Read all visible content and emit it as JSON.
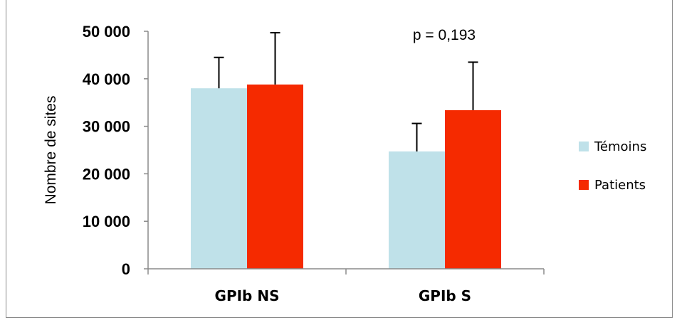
{
  "chart_data": {
    "type": "bar",
    "categories": [
      "GPIb NS",
      "GPIb S"
    ],
    "series": [
      {
        "name": "Témoins",
        "values": [
          38000,
          24700
        ],
        "error_upper": [
          44500,
          30600
        ],
        "color": "#bfe1e9"
      },
      {
        "name": "Patients",
        "values": [
          38800,
          33400
        ],
        "error_upper": [
          49700,
          43500
        ],
        "color": "#f52a00"
      }
    ],
    "ylabel": "Nombre de sites",
    "ylim": [
      0,
      50000
    ],
    "yticks": [
      "0",
      "10 000",
      "20 000",
      "30 000",
      "40 000",
      "50 000"
    ],
    "annotations": [
      {
        "text": "p = 0,193",
        "category": "GPIb S"
      }
    ],
    "legend_position": "right",
    "grid": false
  }
}
